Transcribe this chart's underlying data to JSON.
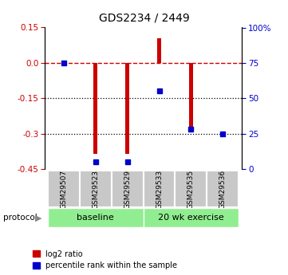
{
  "title": "GDS2234 / 2449",
  "samples": [
    "GSM29507",
    "GSM29523",
    "GSM29529",
    "GSM29533",
    "GSM29535",
    "GSM29536"
  ],
  "log2_ratio": [
    0.0,
    -0.385,
    -0.385,
    0.105,
    -0.27,
    -0.005
  ],
  "percentile": [
    75,
    5,
    5,
    55,
    28,
    25
  ],
  "ylim_left": [
    -0.45,
    0.15
  ],
  "ylim_right": [
    0,
    100
  ],
  "yticks_left": [
    0.15,
    0.0,
    -0.15,
    -0.3,
    -0.45
  ],
  "yticks_right": [
    100,
    75,
    50,
    25,
    0
  ],
  "ytick_labels_right": [
    "100%",
    "75",
    "50",
    "25",
    "0"
  ],
  "bar_color": "#cc0000",
  "dot_color": "#0000cc",
  "dashed_line_color": "#cc0000",
  "dotted_line_color": "#000000",
  "group1_label": "baseline",
  "group2_label": "20 wk exercise",
  "group_bg_color": "#90ee90",
  "sample_bg_color": "#c8c8c8",
  "sample_edge_color": "#ffffff",
  "legend_red_label": "log2 ratio",
  "legend_blue_label": "percentile rank within the sample",
  "bar_width": 0.12
}
